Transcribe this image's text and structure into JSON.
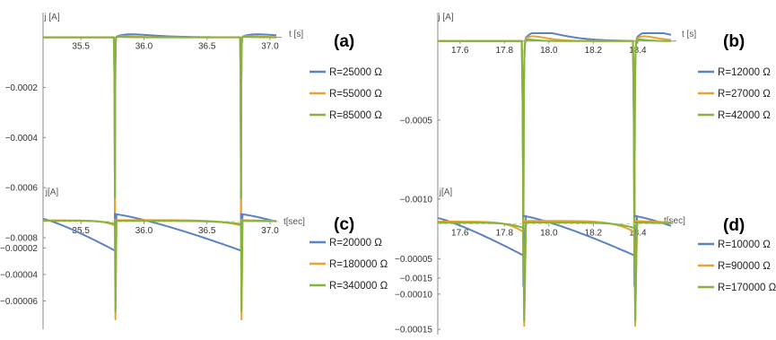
{
  "colors": {
    "blue": "#5b82c4",
    "orange": "#e6a430",
    "green": "#84b43c",
    "axis": "#888888",
    "dashed": "#b9d89b"
  },
  "chart_data": [
    {
      "type": "line",
      "panel_label": "(a)",
      "xlabel": "t [s]",
      "ylabel": "j [A]",
      "xlim": [
        35.2,
        37.05
      ],
      "ylim": [
        -0.0008,
        2e-05
      ],
      "xticks": [
        35.5,
        36.0,
        36.5,
        37.0
      ],
      "xtick_labels": [
        "35.5",
        "36.0",
        "36.5",
        "37.0"
      ],
      "yticks": [
        -0.0002,
        -0.0004,
        -0.0006,
        -0.0008
      ],
      "ytick_labels": [
        "−0.0002",
        "−0.0004",
        "−0.0006",
        "−0.0008"
      ],
      "baseline_dashed": false,
      "spikes": [
        35.77,
        36.77
      ],
      "series": [
        {
          "name": "R=25000 Ω",
          "color": "#5b82c4",
          "baseline": 0,
          "peak": -0.00078,
          "overshoot": 1.2e-05,
          "recover": 0.13
        },
        {
          "name": "R=55000 Ω",
          "color": "#e6a430",
          "baseline": 0,
          "peak": -0.0007,
          "overshoot": 5e-06,
          "recover": 0.07
        },
        {
          "name": "R=85000 Ω",
          "color": "#84b43c",
          "baseline": 0,
          "peak": -0.00064,
          "overshoot": 2e-06,
          "recover": 0.04
        }
      ]
    },
    {
      "type": "line",
      "panel_label": "(b)",
      "xlabel": "t [s]",
      "ylabel": "j [A]",
      "xlim": [
        17.5,
        18.55
      ],
      "ylim": [
        -0.00158,
        5e-05
      ],
      "xticks": [
        17.6,
        17.8,
        18.0,
        18.2,
        18.4
      ],
      "xtick_labels": [
        "17.6",
        "17.8",
        "18.0",
        "18.2",
        "18.4"
      ],
      "yticks": [
        -0.0005,
        -0.001,
        -0.0015
      ],
      "ytick_labels": [
        "−0.0005",
        "−0.0010",
        "−0.0015"
      ],
      "baseline_dashed": false,
      "spikes": [
        17.885,
        18.385
      ],
      "series": [
        {
          "name": "R=12000 Ω",
          "color": "#5b82c4",
          "baseline": 0,
          "peak": -0.00155,
          "overshoot": 6e-05,
          "recover": 0.075
        },
        {
          "name": "R=27000 Ω",
          "color": "#e6a430",
          "baseline": 0,
          "peak": -0.00138,
          "overshoot": 3e-05,
          "recover": 0.045
        },
        {
          "name": "R=42000 Ω",
          "color": "#84b43c",
          "baseline": 0,
          "peak": -0.00126,
          "overshoot": 1e-05,
          "recover": 0.025
        }
      ]
    },
    {
      "type": "line",
      "panel_label": "(c)",
      "xlabel": "t[sec]",
      "ylabel": "j[A]",
      "xlim": [
        35.2,
        37.05
      ],
      "ylim": [
        -8e-05,
        6e-06
      ],
      "xticks": [
        35.5,
        36.0,
        36.5,
        37.0
      ],
      "xtick_labels": [
        "35.5",
        "36.0",
        "36.5",
        "37.0"
      ],
      "yticks": [
        -2e-05,
        -4e-05,
        -6e-05
      ],
      "ytick_labels": [
        "−0.00002",
        "−0.00004",
        "−0.00006"
      ],
      "baseline_dashed": true,
      "spikes": [
        35.77,
        36.77
      ],
      "series": [
        {
          "name": "R=20000 Ω",
          "color": "#5b82c4",
          "start": 2e-06,
          "pre": -2.2e-05,
          "peak": -2.2e-05,
          "after": 5.5e-06,
          "end": 2e-06,
          "mode": "sawtooth"
        },
        {
          "name": "R=180000 Ω",
          "color": "#e6a430",
          "start": 8e-07,
          "pre": -3e-06,
          "peak": -7.4e-05,
          "after": 1e-06,
          "end": 5e-07,
          "mode": "spike"
        },
        {
          "name": "R=340000 Ω",
          "color": "#84b43c",
          "start": 5e-07,
          "pre": -2e-06,
          "peak": -6.8e-05,
          "after": 4e-07,
          "end": 2e-07,
          "mode": "spike"
        }
      ]
    },
    {
      "type": "line",
      "panel_label": "(d)",
      "xlabel": "t[sec]",
      "ylabel": "j[A]",
      "xlim": [
        17.5,
        18.55
      ],
      "ylim": [
        -0.000155,
        1.2e-05
      ],
      "xticks": [
        17.6,
        17.8,
        18.0,
        18.2,
        18.4
      ],
      "xtick_labels": [
        "17.6",
        "17.8",
        "18.0",
        "18.2",
        "18.4"
      ],
      "yticks": [
        -5e-05,
        -0.0001,
        -0.00015
      ],
      "ytick_labels": [
        "−0.00005",
        "−0.00010",
        "−0.00015"
      ],
      "baseline_dashed": true,
      "spikes": [
        17.885,
        18.385
      ],
      "series": [
        {
          "name": "R=10000 Ω",
          "color": "#5b82c4",
          "start": 8e-06,
          "pre": -4.5e-05,
          "peak": -4.5e-05,
          "after": 1.1e-05,
          "end": 6e-06,
          "mode": "sawtooth"
        },
        {
          "name": "R=90000 Ω",
          "color": "#e6a430",
          "start": 3e-06,
          "pre": -1.2e-05,
          "peak": -0.000145,
          "after": 4e-06,
          "end": 2e-06,
          "mode": "spike"
        },
        {
          "name": "R=170000 Ω",
          "color": "#84b43c",
          "start": 1.5e-06,
          "pre": -6e-06,
          "peak": -0.000138,
          "after": 1.8e-06,
          "end": 8e-07,
          "mode": "spike"
        }
      ]
    }
  ]
}
